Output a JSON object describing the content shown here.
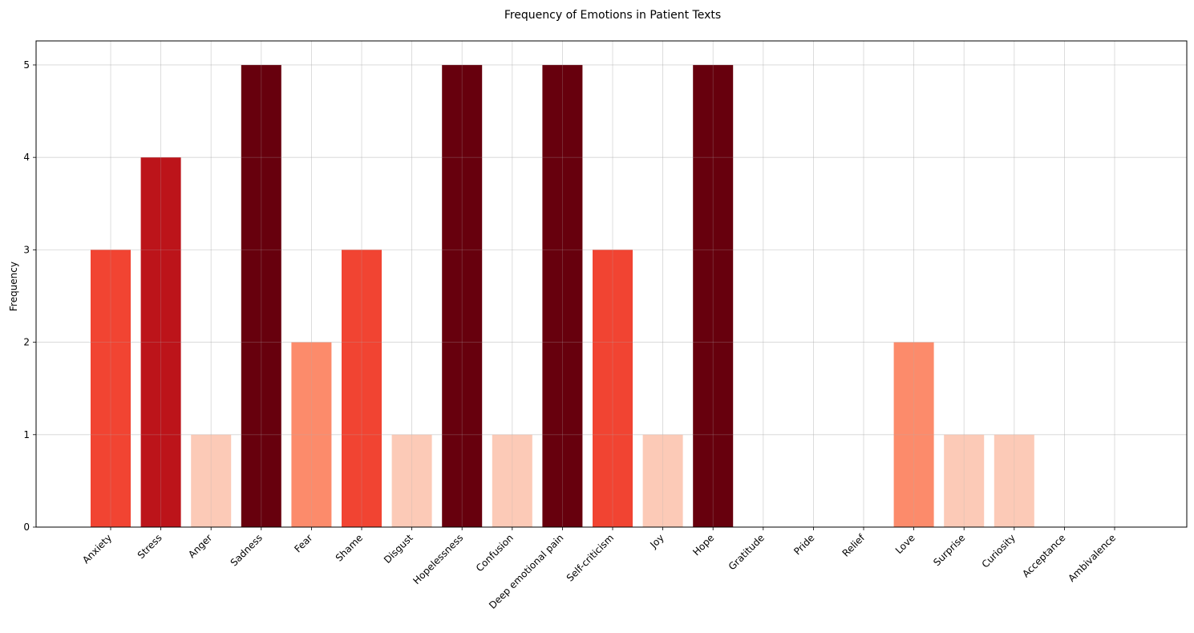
{
  "chart_data": {
    "type": "bar",
    "title": "Frequency of Emotions in Patient Texts",
    "xlabel": "",
    "ylabel": "Frequency",
    "ylim": [
      0,
      5.26
    ],
    "yticks": [
      0,
      1,
      2,
      3,
      4,
      5
    ],
    "grid": true,
    "categories": [
      "Anxiety",
      "Stress",
      "Anger",
      "Sadness",
      "Fear",
      "Shame",
      "Disgust",
      "Hopelessness",
      "Confusion",
      "Deep emotional pain",
      "Self-criticism",
      "Joy",
      "Hope",
      "Gratitude",
      "Pride",
      "Relief",
      "Love",
      "Surprise",
      "Curiosity",
      "Acceptance",
      "Ambivalence"
    ],
    "values": [
      3,
      4,
      1,
      5,
      2,
      3,
      1,
      5,
      1,
      5,
      3,
      1,
      5,
      0,
      0,
      0,
      2,
      1,
      1,
      0,
      0
    ],
    "color_by_value": {
      "1": "#fccab7",
      "2": "#fc8b6b",
      "3": "#f14432",
      "4": "#bc141a",
      "5": "#67000d"
    }
  }
}
